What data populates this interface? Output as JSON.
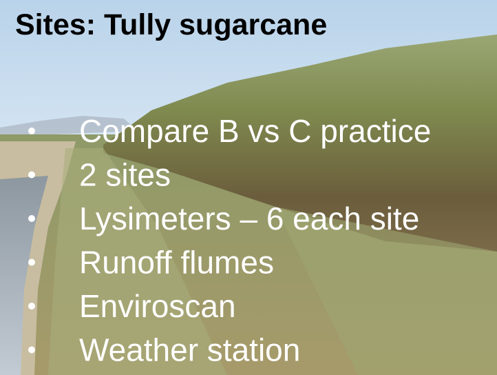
{
  "title": "Sites: Tully sugarcane",
  "bullets": [
    "Compare B vs C practice",
    "2 sites",
    "Lysimeters – 6 each site",
    "Runoff flumes",
    "Enviroscan",
    "Weather station"
  ]
}
